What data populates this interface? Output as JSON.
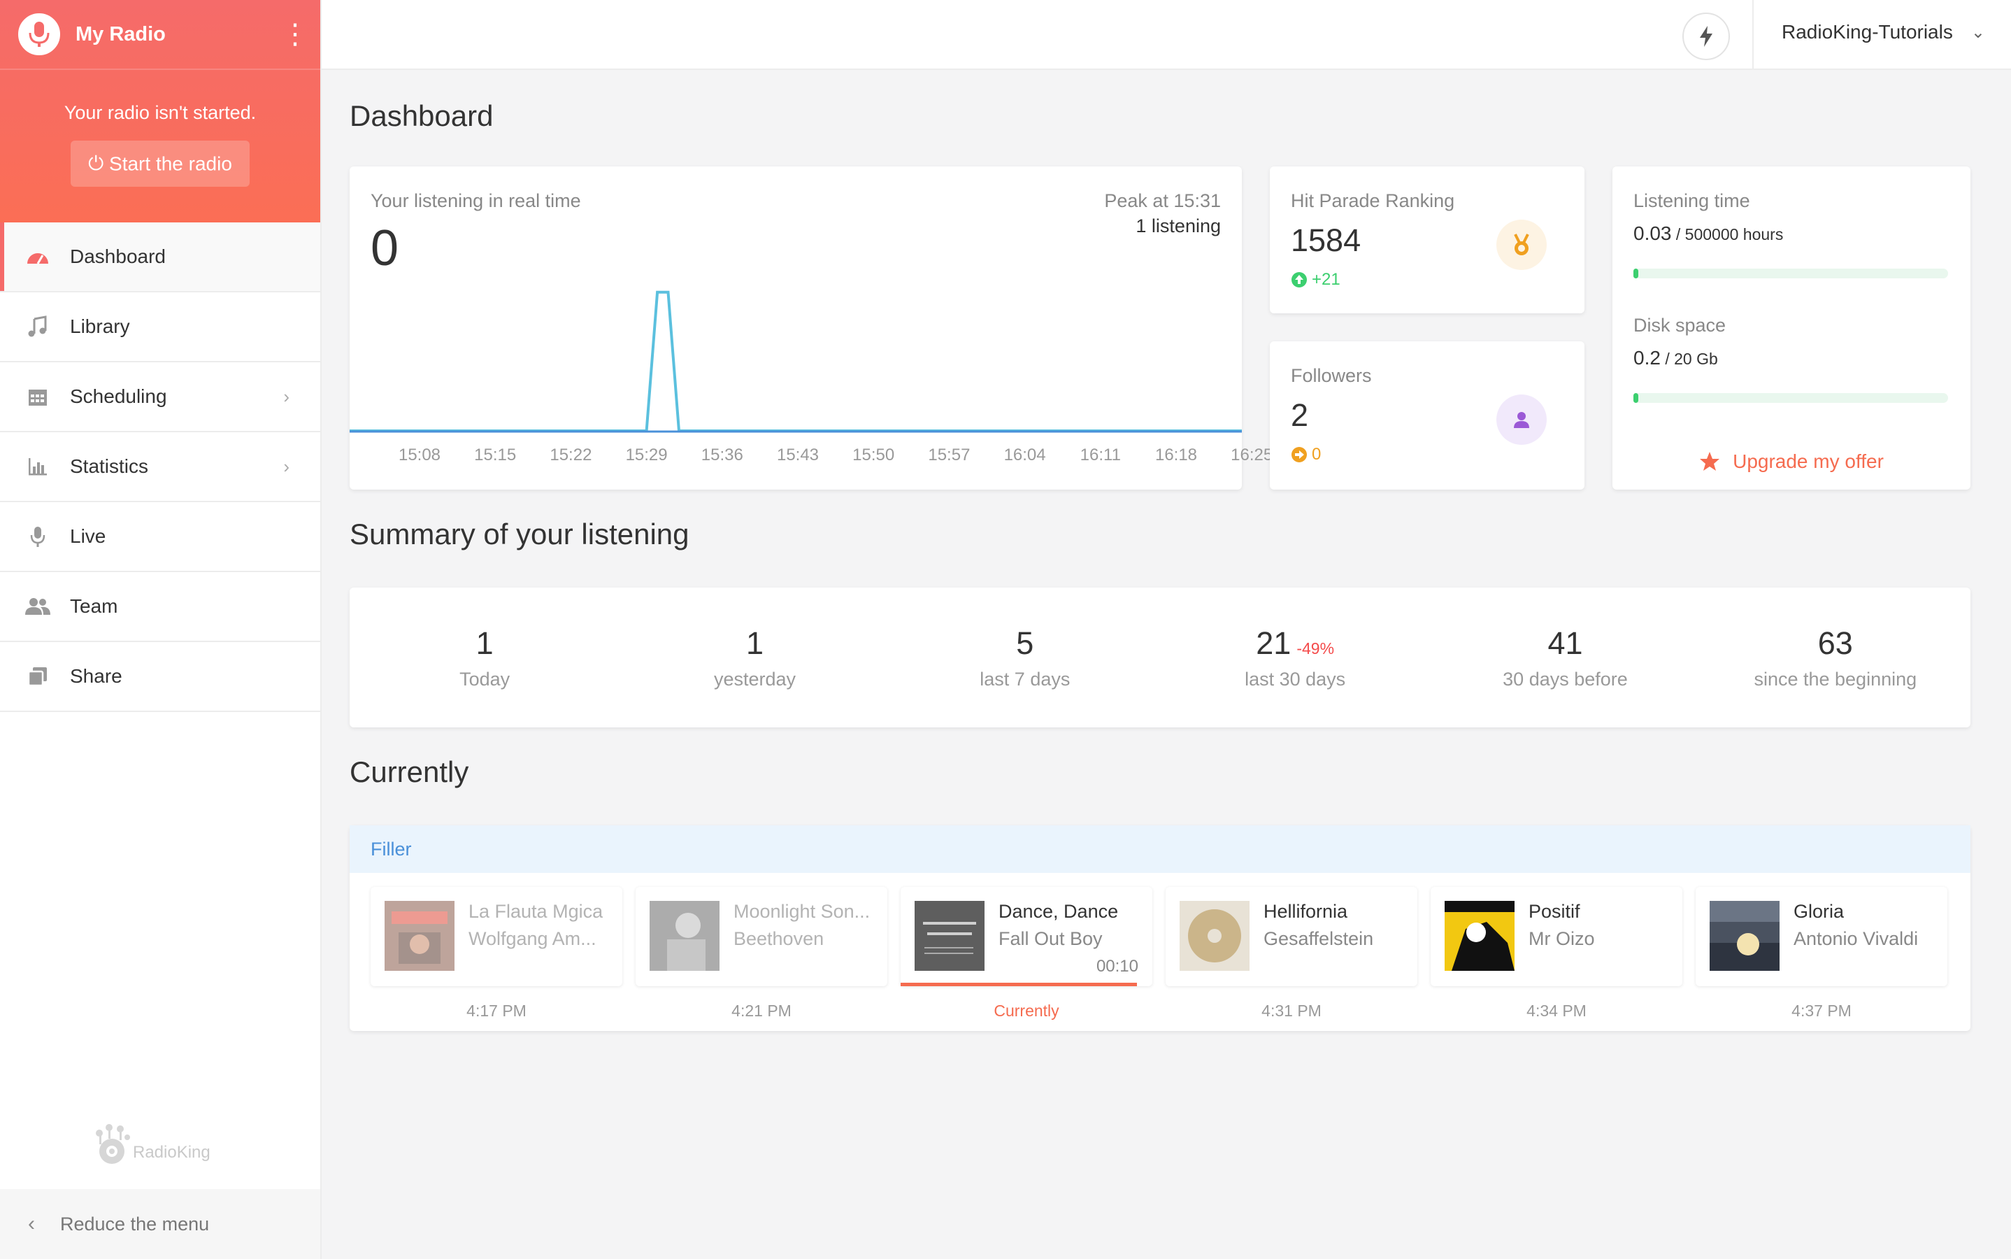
{
  "sidebar": {
    "title": "My Radio",
    "status": "Your radio isn't started.",
    "start_label": "Start the radio",
    "items": [
      {
        "label": "Dashboard",
        "icon": "gauge-icon"
      },
      {
        "label": "Library",
        "icon": "music-note-icon"
      },
      {
        "label": "Scheduling",
        "icon": "calendar-icon"
      },
      {
        "label": "Statistics",
        "icon": "bar-chart-icon"
      },
      {
        "label": "Live",
        "icon": "microphone-icon"
      },
      {
        "label": "Team",
        "icon": "users-icon"
      },
      {
        "label": "Share",
        "icon": "share-icon"
      }
    ],
    "brand": "RadioKing",
    "reduce_label": "Reduce the menu"
  },
  "topbar": {
    "account": "RadioKing-Tutorials"
  },
  "dashboard": {
    "title": "Dashboard",
    "realtime": {
      "label": "Your listening in real time",
      "value": "0",
      "peak": "Peak at 15:31",
      "peak_count": "1 listening"
    },
    "hit_parade": {
      "label": "Hit Parade Ranking",
      "value": "1584",
      "delta": "+21"
    },
    "followers": {
      "label": "Followers",
      "value": "2",
      "delta": "0"
    },
    "listening_time": {
      "label": "Listening time",
      "value": "0.03",
      "unit": " / 500000 hours",
      "fraction": 6e-08
    },
    "disk_space": {
      "label": "Disk space",
      "value": "0.2",
      "unit": " / 20 Gb",
      "fraction": 0.01
    },
    "upgrade_label": "Upgrade my offer"
  },
  "chart_data": {
    "type": "line",
    "x": [
      "15:08",
      "15:15",
      "15:22",
      "15:29",
      "15:36",
      "15:43",
      "15:50",
      "15:57",
      "16:04",
      "16:11",
      "16:18",
      "16:25"
    ],
    "series_points": [
      {
        "t": "15:08",
        "v": 0
      },
      {
        "t": "15:29",
        "v": 0
      },
      {
        "t": "15:30",
        "v": 1
      },
      {
        "t": "15:31",
        "v": 1
      },
      {
        "t": "15:32",
        "v": 0
      },
      {
        "t": "16:30",
        "v": 0
      }
    ],
    "ylim": [
      0,
      1.1
    ],
    "grid": false,
    "color": "#5bc0de"
  },
  "summary": {
    "title": "Summary of your listening",
    "items": [
      {
        "value": "1",
        "label": "Today",
        "pct": ""
      },
      {
        "value": "1",
        "label": "yesterday",
        "pct": ""
      },
      {
        "value": "5",
        "label": "last 7 days",
        "pct": ""
      },
      {
        "value": "21",
        "label": "last 30 days",
        "pct": "-49%"
      },
      {
        "value": "41",
        "label": "30 days before",
        "pct": ""
      },
      {
        "value": "63",
        "label": "since the beginning",
        "pct": ""
      }
    ]
  },
  "currently": {
    "title": "Currently",
    "playlist": "Filler",
    "tracks": [
      {
        "title": "La Flauta Mgica",
        "artist": "Wolfgang Am...",
        "time": "4:17 PM",
        "state": "past"
      },
      {
        "title": "Moonlight Son...",
        "artist": "Beethoven",
        "time": "4:21 PM",
        "state": "past"
      },
      {
        "title": "Dance, Dance",
        "artist": "Fall Out Boy",
        "time": "Currently",
        "state": "current",
        "remaining": "00:10",
        "progress": 0.94
      },
      {
        "title": "Hellifornia",
        "artist": "Gesaffelstein",
        "time": "4:31 PM",
        "state": "next"
      },
      {
        "title": "Positif",
        "artist": "Mr Oizo",
        "time": "4:34 PM",
        "state": "next"
      },
      {
        "title": "Gloria",
        "artist": "Antonio Vivaldi",
        "time": "4:37 PM",
        "state": "next"
      }
    ]
  },
  "colors": {
    "accent": "#f56b6a",
    "orange": "#f56b4f",
    "green": "#3ccf6f",
    "chart_line": "#5bc0de",
    "filler_bar": "#eaf4fd"
  }
}
